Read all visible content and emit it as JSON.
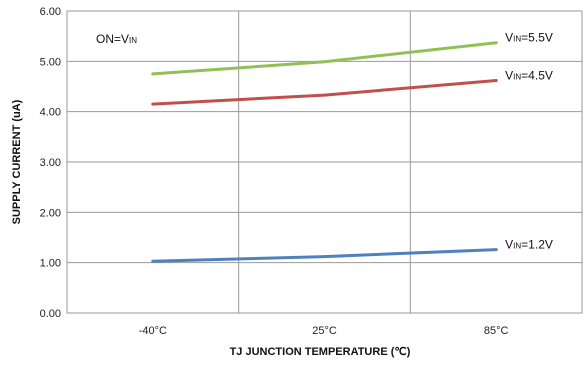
{
  "chart_data": {
    "type": "line",
    "title": "",
    "xlabel": "TJ JUNCTION TEMPERATURE (℃)",
    "ylabel": "SUPPLY CURRENT (uA)",
    "categories": [
      "-40°C",
      "25°C",
      "85°C"
    ],
    "ylim": [
      0,
      6
    ],
    "yticks": [
      "0.00",
      "1.00",
      "2.00",
      "3.00",
      "4.00",
      "5.00",
      "6.00"
    ],
    "grid": true,
    "legend": "none",
    "annotation": {
      "main": "ON=V",
      "sub": "IN"
    },
    "series": [
      {
        "name": "VIN=5.5V",
        "label_main": "V",
        "label_sub": "IN",
        "label_rest": "=5.5V",
        "color": "#92c057",
        "values": [
          4.75,
          4.99,
          5.37
        ]
      },
      {
        "name": "VIN=4.5V",
        "label_main": "V",
        "label_sub": "IN",
        "label_rest": "=4.5V",
        "color": "#c0504d",
        "values": [
          4.15,
          4.33,
          4.62
        ]
      },
      {
        "name": "VIN=1.2V",
        "label_main": "V",
        "label_sub": "IN",
        "label_rest": "=1.2V",
        "color": "#4f81bd",
        "values": [
          1.03,
          1.12,
          1.26
        ]
      }
    ]
  }
}
